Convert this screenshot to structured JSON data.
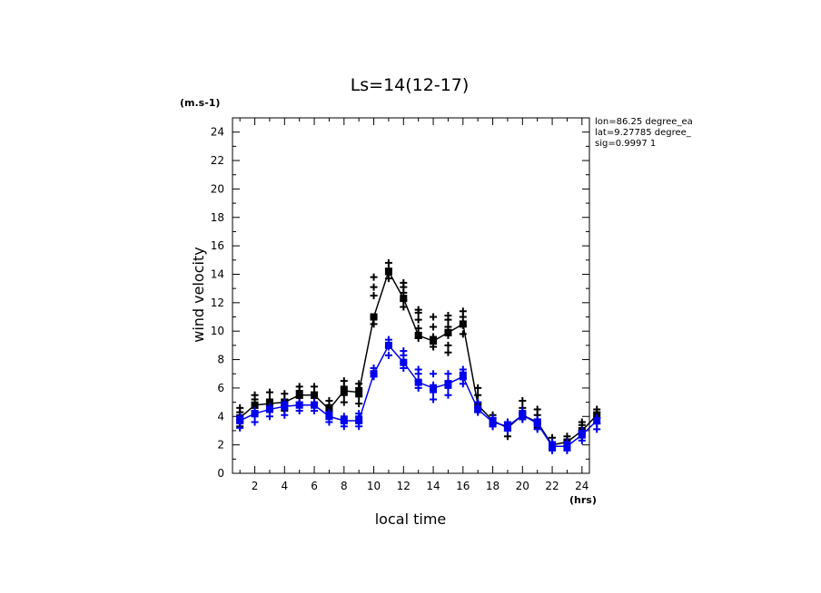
{
  "chart_data": {
    "type": "line",
    "title": "Ls=14(12-17)",
    "xlabel": "local time",
    "ylabel": "wind velocity",
    "x_unit": "(hrs)",
    "y_unit": "(m.s-1)",
    "xlim": [
      0.5,
      24.5
    ],
    "ylim": [
      0,
      25
    ],
    "x_ticks": [
      2,
      4,
      6,
      8,
      10,
      12,
      14,
      16,
      18,
      20,
      22,
      24
    ],
    "y_ticks": [
      0,
      2,
      4,
      6,
      8,
      10,
      12,
      14,
      16,
      18,
      20,
      22,
      24
    ],
    "info_lines": [
      "lon=86.25 degree_ea",
      "lat=9.27785 degree_",
      "sig=0.9997 1"
    ],
    "x": [
      1,
      2,
      3,
      4,
      5,
      6,
      7,
      8,
      9,
      10,
      11,
      12,
      13,
      14,
      15,
      16,
      17,
      18,
      19,
      20,
      21,
      22,
      23,
      24,
      25
    ],
    "series": [
      {
        "color": "#000000",
        "values": [
          3.9,
          4.8,
          4.9,
          5.0,
          5.5,
          5.5,
          4.5,
          5.8,
          5.7,
          11.0,
          14.2,
          12.3,
          9.7,
          9.3,
          9.9,
          10.5,
          4.8,
          3.7,
          3.2,
          4.1,
          3.6,
          2.0,
          2.2,
          3.0,
          4.1
        ],
        "spread": [
          [
            3.3,
            3.6,
            4.3,
            4.6
          ],
          [
            4.2,
            4.6,
            5.2,
            5.5
          ],
          [
            4.4,
            4.8,
            5.2,
            5.7
          ],
          [
            4.4,
            4.8,
            5.2,
            5.6
          ],
          [
            4.8,
            5.3,
            5.8,
            6.1
          ],
          [
            4.9,
            5.3,
            5.7,
            6.1
          ],
          [
            4.0,
            4.4,
            4.8,
            5.1
          ],
          [
            5.0,
            5.5,
            6.1,
            6.5
          ],
          [
            4.9,
            5.4,
            6.0,
            6.3
          ],
          [
            10.5,
            11.0,
            12.5,
            13.1,
            13.8
          ],
          [
            13.7,
            14.0,
            14.4,
            14.8
          ],
          [
            11.7,
            12.2,
            12.7,
            13.1,
            13.4
          ],
          [
            9.5,
            10.2,
            10.8,
            11.3,
            11.5
          ],
          [
            8.9,
            9.6,
            10.3,
            11.0
          ],
          [
            8.5,
            9.0,
            9.7,
            10.3,
            10.8,
            11.1
          ],
          [
            9.8,
            10.4,
            11.0,
            11.4
          ],
          [
            4.4,
            4.9,
            5.5,
            6.0
          ],
          [
            3.3,
            3.6,
            3.9,
            4.1
          ],
          [
            2.6,
            3.0,
            3.3,
            3.6
          ],
          [
            3.8,
            4.2,
            4.6,
            5.1
          ],
          [
            3.2,
            3.6,
            4.1,
            4.5
          ],
          [
            1.7,
            2.1,
            2.5
          ],
          [
            1.9,
            2.3,
            2.6
          ],
          [
            2.7,
            3.0,
            3.4,
            3.6
          ],
          [
            3.5,
            3.9,
            4.3,
            4.5
          ]
        ]
      },
      {
        "color": "#0000ee",
        "values": [
          3.7,
          4.2,
          4.5,
          4.7,
          4.8,
          4.8,
          4.0,
          3.7,
          3.7,
          7.0,
          9.0,
          7.8,
          6.4,
          6.0,
          6.3,
          6.8,
          4.5,
          3.6,
          3.3,
          4.1,
          3.5,
          1.9,
          1.9,
          2.7,
          3.7
        ],
        "spread": [
          [
            3.2,
            3.6,
            4.0
          ],
          [
            3.6,
            4.0,
            4.4
          ],
          [
            4.0,
            4.4,
            4.7
          ],
          [
            4.1,
            4.5,
            4.8,
            5.0
          ],
          [
            4.4,
            4.8,
            5.0
          ],
          [
            4.4,
            4.7,
            5.0
          ],
          [
            3.6,
            4.0,
            4.3
          ],
          [
            3.3,
            3.6,
            4.0
          ],
          [
            3.3,
            3.6,
            4.0,
            4.2
          ],
          [
            6.8,
            7.1,
            7.4
          ],
          [
            8.3,
            8.9,
            9.4
          ],
          [
            7.4,
            7.8,
            8.3,
            8.6
          ],
          [
            6.0,
            6.5,
            7.0,
            7.3
          ],
          [
            5.2,
            5.7,
            6.2,
            7.0
          ],
          [
            5.5,
            6.0,
            6.5,
            7.0
          ],
          [
            6.3,
            6.7,
            7.1,
            7.3
          ],
          [
            4.3,
            4.6,
            5.0
          ],
          [
            3.3,
            3.6,
            3.9
          ],
          [
            3.0,
            3.3,
            3.6
          ],
          [
            3.8,
            4.1,
            4.4
          ],
          [
            3.1,
            3.5,
            3.8
          ],
          [
            1.6,
            1.9,
            2.2
          ],
          [
            1.6,
            1.9,
            2.2
          ],
          [
            2.3,
            2.6,
            3.0
          ],
          [
            3.1,
            3.5,
            3.9
          ]
        ]
      }
    ]
  }
}
